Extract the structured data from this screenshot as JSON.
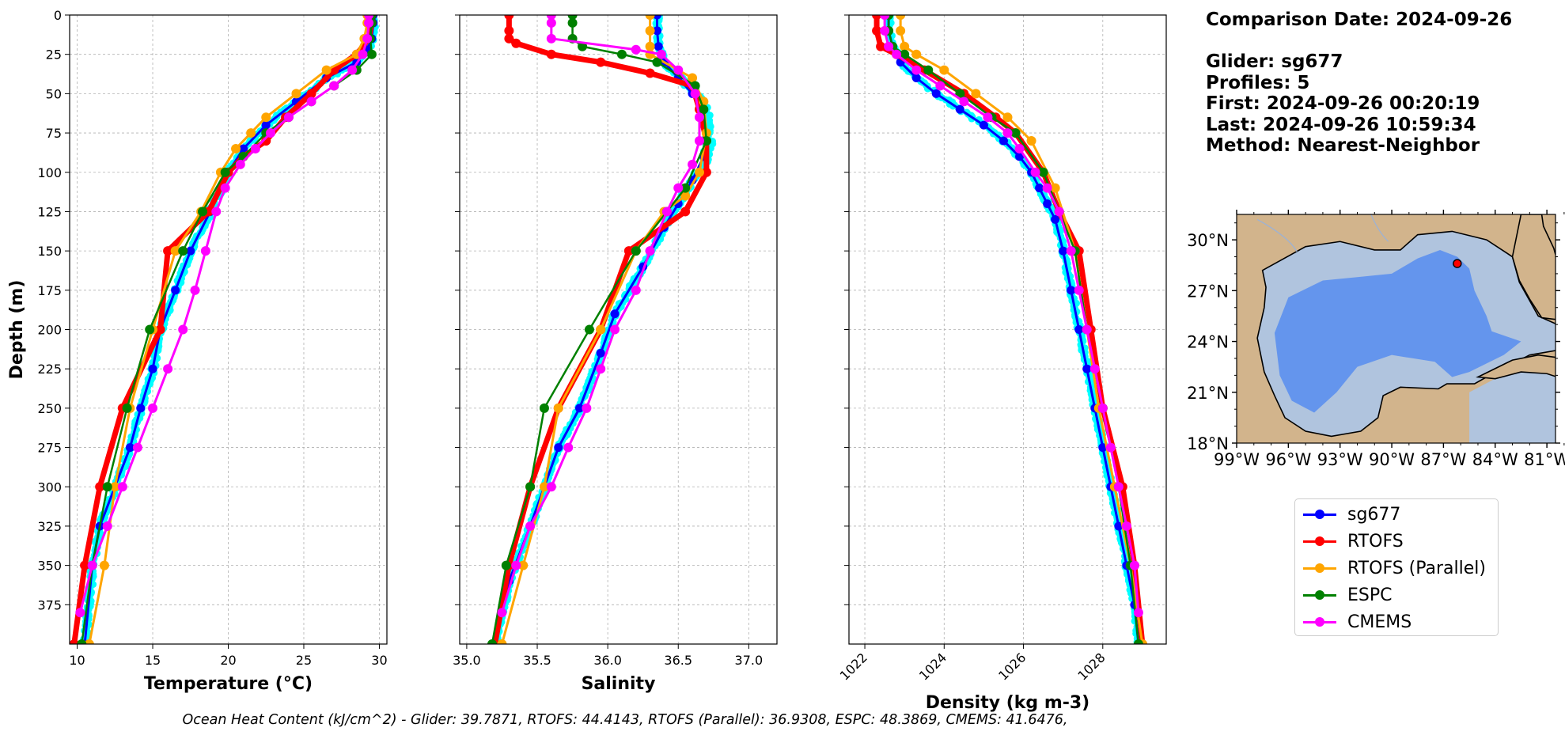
{
  "info": {
    "comparison_line": "Comparison Date: 2024-09-26",
    "glider_line": "Glider: sg677",
    "profiles_line": "Profiles: 5",
    "first_line": "First: 2024-09-26 00:20:19",
    "last_line": "Last: 2024-09-26 10:59:34",
    "method_line": "Method: Nearest-Neighbor"
  },
  "footer": "Ocean Heat Content (kJ/cm^2) - Glider: 39.7871,  RTOFS: 44.4143,  RTOFS (Parallel): 36.9308,  ESPC: 48.3869,  CMEMS: 41.6476,",
  "legend": [
    {
      "name": "sg677",
      "color": "#0000ff"
    },
    {
      "name": "RTOFS",
      "color": "#ff0000"
    },
    {
      "name": "RTOFS (Parallel)",
      "color": "#ffa500"
    },
    {
      "name": "ESPC",
      "color": "#008000"
    },
    {
      "name": "CMEMS",
      "color": "#ff00ff"
    }
  ],
  "colors": {
    "glider_raw": "#00ffff",
    "sg677": "#0000ff",
    "RTOFS": "#ff0000",
    "RTOFS (Parallel)": "#ffa500",
    "ESPC": "#008000",
    "CMEMS": "#ff00ff",
    "map_land": "#d2b48c",
    "map_deep": "#6495ed",
    "map_shelf": "#b0c4de"
  },
  "chart_data": [
    {
      "type": "line",
      "xlabel": "Temperature (°C)",
      "ylabel": "Depth (m)",
      "xlim": [
        9.5,
        30.5
      ],
      "ylim": [
        0,
        400
      ],
      "y_inverted": true,
      "xticks": [
        10,
        15,
        20,
        25,
        30
      ],
      "yticks": [
        0,
        25,
        50,
        75,
        100,
        125,
        150,
        175,
        200,
        225,
        250,
        275,
        300,
        325,
        350,
        375
      ],
      "grid": true,
      "series": [
        {
          "name": "sg677",
          "x": [
            29.6,
            29.6,
            29.5,
            29.2,
            28.5,
            26.5,
            24.5,
            22.5,
            21.0,
            20.0,
            18.8,
            17.5,
            16.5,
            15.5,
            15.0,
            14.2,
            13.5,
            12.5,
            11.5,
            11.0,
            10.5
          ],
          "y": [
            0,
            5,
            15,
            22,
            30,
            40,
            55,
            70,
            85,
            100,
            125,
            150,
            175,
            200,
            225,
            250,
            275,
            300,
            325,
            350,
            400
          ]
        },
        {
          "name": "RTOFS",
          "x": [
            29.5,
            29.5,
            29.3,
            28.5,
            27.0,
            25.5,
            23.8,
            22.5,
            21.0,
            20.0,
            18.7,
            16.0,
            15.5,
            13.0,
            11.5,
            10.5,
            9.8
          ],
          "y": [
            0,
            5,
            15,
            25,
            35,
            50,
            65,
            80,
            90,
            100,
            125,
            150,
            200,
            250,
            300,
            350,
            400
          ]
        },
        {
          "name": "RTOFS (Parallel)",
          "x": [
            29.2,
            29.2,
            29.0,
            28.5,
            26.5,
            24.5,
            22.5,
            21.5,
            20.5,
            19.5,
            18.2,
            16.5,
            15.0,
            13.5,
            12.5,
            11.8,
            10.8
          ],
          "y": [
            0,
            5,
            15,
            25,
            35,
            50,
            65,
            75,
            85,
            100,
            125,
            150,
            200,
            250,
            300,
            350,
            400
          ]
        },
        {
          "name": "ESPC",
          "x": [
            29.5,
            29.5,
            29.4,
            29.5,
            28.5,
            27.0,
            25.5,
            24.0,
            22.5,
            21.0,
            19.8,
            18.3,
            17.0,
            14.8,
            13.3,
            12.0,
            11.0,
            10.3
          ],
          "y": [
            0,
            5,
            15,
            25,
            35,
            45,
            55,
            65,
            75,
            90,
            100,
            125,
            150,
            200,
            250,
            300,
            350,
            400
          ]
        },
        {
          "name": "CMEMS",
          "x": [
            29.3,
            29.3,
            29.2,
            28.9,
            28.2,
            27.0,
            25.5,
            24.0,
            22.8,
            21.8,
            20.8,
            19.8,
            19.2,
            18.5,
            17.8,
            17.0,
            16.0,
            15.0,
            14.0,
            13.0,
            12.0,
            11.0,
            10.2
          ],
          "y": [
            0,
            5,
            15,
            25,
            35,
            45,
            55,
            65,
            75,
            85,
            95,
            110,
            125,
            150,
            175,
            200,
            225,
            250,
            275,
            300,
            325,
            350,
            380
          ]
        }
      ]
    },
    {
      "type": "line",
      "xlabel": "Salinity",
      "ylim": [
        0,
        400
      ],
      "y_inverted": true,
      "xlim": [
        34.95,
        37.2
      ],
      "xticks": [
        35.0,
        35.5,
        36.0,
        36.5,
        37.0
      ],
      "grid": true,
      "series": [
        {
          "name": "sg677",
          "x": [
            36.35,
            36.35,
            36.36,
            36.4,
            36.5,
            36.6,
            36.68,
            36.7,
            36.68,
            36.6,
            36.5,
            36.4,
            36.25,
            36.05,
            35.95,
            35.8,
            35.65,
            35.55,
            35.45,
            35.3,
            35.2
          ],
          "y": [
            0,
            10,
            20,
            30,
            40,
            50,
            60,
            75,
            90,
            105,
            120,
            135,
            160,
            190,
            215,
            250,
            275,
            300,
            325,
            360,
            400
          ]
        },
        {
          "name": "RTOFS",
          "x": [
            35.3,
            35.3,
            35.3,
            35.35,
            35.6,
            35.95,
            36.3,
            36.6,
            36.65,
            36.7,
            36.7,
            36.55,
            36.15,
            35.95,
            35.65,
            35.45,
            35.3,
            35.2
          ],
          "y": [
            0,
            10,
            15,
            18,
            25,
            30,
            37,
            45,
            60,
            80,
            100,
            125,
            150,
            200,
            250,
            300,
            350,
            400
          ]
        },
        {
          "name": "RTOFS (Parallel)",
          "x": [
            36.3,
            36.3,
            36.3,
            36.3,
            36.6,
            36.68,
            36.7,
            36.65,
            36.55,
            36.4,
            36.2,
            35.95,
            35.65,
            35.55,
            35.4,
            35.25
          ],
          "y": [
            0,
            10,
            20,
            25,
            40,
            55,
            75,
            100,
            115,
            125,
            150,
            200,
            250,
            300,
            350,
            400
          ]
        },
        {
          "name": "ESPC",
          "x": [
            35.75,
            35.75,
            35.75,
            35.82,
            36.1,
            36.35,
            36.62,
            36.68,
            36.7,
            36.55,
            36.42,
            36.2,
            35.87,
            35.55,
            35.45,
            35.28,
            35.18
          ],
          "y": [
            0,
            5,
            15,
            20,
            25,
            30,
            45,
            60,
            80,
            110,
            125,
            150,
            200,
            250,
            300,
            350,
            400
          ]
        },
        {
          "name": "CMEMS",
          "x": [
            35.6,
            35.6,
            35.6,
            36.2,
            36.38,
            36.5,
            36.62,
            36.65,
            36.65,
            36.6,
            36.5,
            36.42,
            36.3,
            36.2,
            36.05,
            35.95,
            35.85,
            35.72,
            35.6,
            35.45,
            35.35,
            35.25
          ],
          "y": [
            0,
            5,
            15,
            22,
            25,
            35,
            50,
            65,
            80,
            95,
            110,
            125,
            150,
            175,
            200,
            225,
            250,
            275,
            300,
            325,
            350,
            380
          ]
        }
      ]
    },
    {
      "type": "line",
      "xlabel": "Density (kg m-3)",
      "ylim": [
        0,
        400
      ],
      "y_inverted": true,
      "xlim": [
        1021.6,
        1029.6
      ],
      "xticks": [
        1022,
        1024,
        1026,
        1028
      ],
      "grid": true,
      "series": [
        {
          "name": "sg677",
          "x": [
            1022.6,
            1022.6,
            1022.7,
            1022.9,
            1023.3,
            1023.8,
            1024.4,
            1025.0,
            1025.5,
            1025.9,
            1026.2,
            1026.4,
            1026.6,
            1026.8,
            1027.0,
            1027.2,
            1027.4,
            1027.6,
            1027.8,
            1028.0,
            1028.2,
            1028.4,
            1028.6,
            1028.8,
            1028.9
          ],
          "y": [
            0,
            10,
            20,
            30,
            40,
            50,
            60,
            70,
            80,
            90,
            100,
            110,
            120,
            130,
            150,
            175,
            200,
            225,
            250,
            275,
            300,
            325,
            350,
            375,
            400
          ]
        },
        {
          "name": "RTOFS",
          "x": [
            1022.3,
            1022.3,
            1022.4,
            1022.8,
            1023.5,
            1024.5,
            1025.3,
            1025.8,
            1026.5,
            1026.9,
            1027.4,
            1027.7,
            1028.0,
            1028.5,
            1028.8,
            1029.0
          ],
          "y": [
            0,
            10,
            20,
            25,
            35,
            50,
            65,
            75,
            100,
            125,
            150,
            200,
            250,
            300,
            350,
            400
          ]
        },
        {
          "name": "RTOFS (Parallel)",
          "x": [
            1022.9,
            1022.9,
            1023.0,
            1023.3,
            1024.0,
            1024.8,
            1025.6,
            1026.2,
            1026.8,
            1027.3,
            1027.6,
            1027.9,
            1028.3,
            1028.7,
            1029.0
          ],
          "y": [
            0,
            10,
            20,
            25,
            35,
            50,
            65,
            80,
            110,
            150,
            200,
            250,
            300,
            350,
            400
          ]
        },
        {
          "name": "ESPC",
          "x": [
            1022.6,
            1022.6,
            1022.7,
            1023.0,
            1023.6,
            1024.4,
            1025.2,
            1025.8,
            1026.5,
            1026.9,
            1027.3,
            1027.6,
            1028.0,
            1028.4,
            1028.7,
            1028.9
          ],
          "y": [
            0,
            10,
            20,
            25,
            35,
            50,
            65,
            75,
            100,
            125,
            150,
            200,
            250,
            300,
            350,
            400
          ]
        },
        {
          "name": "CMEMS",
          "x": [
            1022.5,
            1022.5,
            1022.6,
            1022.8,
            1023.3,
            1023.9,
            1024.5,
            1025.1,
            1025.6,
            1025.9,
            1026.3,
            1026.6,
            1026.9,
            1027.2,
            1027.4,
            1027.6,
            1027.8,
            1028.0,
            1028.2,
            1028.4,
            1028.6,
            1028.8,
            1028.9
          ],
          "y": [
            0,
            10,
            20,
            25,
            35,
            45,
            55,
            65,
            75,
            85,
            100,
            110,
            125,
            150,
            175,
            200,
            225,
            250,
            275,
            300,
            325,
            350,
            380
          ]
        }
      ]
    },
    {
      "type": "map",
      "xticks": [
        "99°W",
        "96°W",
        "93°W",
        "90°W",
        "87°W",
        "84°W",
        "81°W"
      ],
      "yticks": [
        "30°N",
        "27°N",
        "24°N",
        "21°N",
        "18°N"
      ],
      "lon_range": [
        -99,
        -80.5
      ],
      "lat_range": [
        18,
        31.5
      ],
      "marker": {
        "lon": -86.2,
        "lat": 28.6
      }
    }
  ]
}
